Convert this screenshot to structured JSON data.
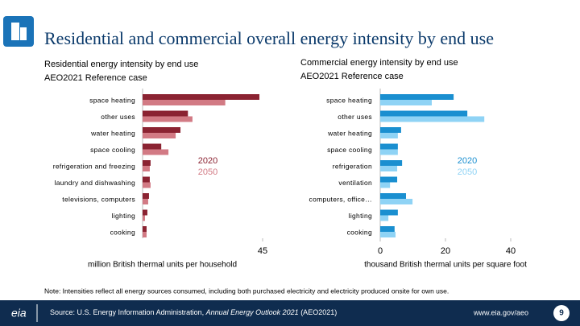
{
  "title": "Residential and commercial overall energy intensity by end use",
  "chart_data": [
    {
      "type": "bar",
      "orientation": "horizontal",
      "title": "Residential energy intensity by end use",
      "subtitle": "AEO2021 Reference case",
      "categories": [
        "space heating",
        "other uses",
        "water heating",
        "space cooling",
        "refrigeration and freezing",
        "laundry and dishwashing",
        "televisions, computers",
        "lighting",
        "cooking"
      ],
      "series": [
        {
          "name": "2020",
          "color": "#8b2332",
          "values": [
            43.8,
            17,
            14.2,
            7,
            3,
            2.7,
            2.4,
            1.8,
            1.5
          ]
        },
        {
          "name": "2050",
          "color": "#d27a84",
          "values": [
            31,
            18.7,
            12.4,
            9.7,
            2.7,
            3,
            2.1,
            0.9,
            1.5
          ]
        }
      ],
      "xlim": [
        0,
        45
      ],
      "xticks": [
        45
      ],
      "xlabel": "million British thermal units per household"
    },
    {
      "type": "bar",
      "orientation": "horizontal",
      "title": "Commercial energy intensity by end use",
      "subtitle": "AEO2021 Reference case",
      "categories": [
        "space heating",
        "other uses",
        "water heating",
        "space cooling",
        "refrigeration",
        "ventilation",
        "computers, office…",
        "lighting",
        "cooking"
      ],
      "series": [
        {
          "name": "2020",
          "color": "#1a8fd0",
          "values": [
            22.5,
            26.7,
            6.4,
            5.4,
            6.7,
            5.2,
            7.9,
            5.4,
            4.4
          ]
        },
        {
          "name": "2050",
          "color": "#8fd3f5",
          "values": [
            15.8,
            31.9,
            5.4,
            5.4,
            5.2,
            3,
            9.9,
            2.5,
            4.7
          ]
        }
      ],
      "xlim": [
        0,
        40
      ],
      "xticks": [
        0,
        20,
        40
      ],
      "xlabel": "thousand British thermal units per square foot"
    }
  ],
  "note": "Note: Intensities reflect all energy sources consumed, including both purchased electricity and electricity produced onsite for own use.",
  "footer": {
    "logo": "eia",
    "source_prefix": "Source: U.S. Energy Information Administration, ",
    "source_italic": "Annual Energy Outlook 2021",
    "source_suffix": " (AEO2021)",
    "url": "www.eia.gov/aeo",
    "page": "9"
  }
}
